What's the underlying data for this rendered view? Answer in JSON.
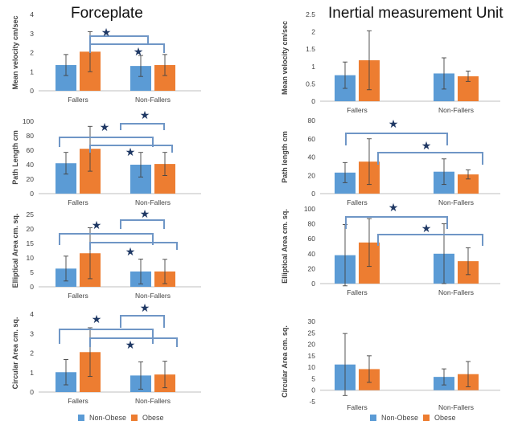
{
  "titles": {
    "left": "Forceplate",
    "right": "Inertial measurement Unit"
  },
  "legend": {
    "a": "Non-Obese",
    "b": "Obese"
  },
  "colors": {
    "a": "#5b9bd5",
    "b": "#ed7d31",
    "bracket": "#6f96c6",
    "star": "#1f3864",
    "axis": "#bfbfbf",
    "err": "#444444",
    "text": "#404040"
  },
  "chart_data": [
    {
      "type": "bar",
      "categories": [
        "Fallers",
        "Non-Fallers"
      ],
      "ylabel": "Mean velocity cm/sec",
      "ylim": [
        0,
        4
      ],
      "ticks": [
        "0",
        "1",
        "2",
        "3",
        "4"
      ],
      "series": [
        {
          "name": "Non-Obese",
          "values": [
            1.35,
            1.3
          ],
          "err": [
            0.55,
            0.55
          ]
        },
        {
          "name": "Obese",
          "values": [
            2.05,
            1.35
          ],
          "err": [
            1.05,
            0.55
          ]
        }
      ],
      "annotations": [
        "★",
        "★"
      ]
    },
    {
      "type": "bar",
      "categories": [
        "Fallers",
        "Non-Fallers"
      ],
      "ylabel": "Mean velocity cm/sec",
      "ylim": [
        0,
        2.5
      ],
      "ticks": [
        "0",
        "0.5",
        "1",
        "1.5",
        "2",
        "2.5"
      ],
      "series": [
        {
          "name": "Non-Obese",
          "values": [
            0.75,
            0.8
          ],
          "err": [
            0.38,
            0.45
          ]
        },
        {
          "name": "Obese",
          "values": [
            1.18,
            0.72
          ],
          "err": [
            0.85,
            0.15
          ]
        }
      ],
      "annotations": []
    },
    {
      "type": "bar",
      "categories": [
        "Fallers",
        "Non-Fallers"
      ],
      "ylabel": "Path Length cm",
      "ylim": [
        0,
        100
      ],
      "ticks": [
        "0",
        "20",
        "40",
        "60",
        "80",
        "100"
      ],
      "series": [
        {
          "name": "Non-Obese",
          "values": [
            42,
            40
          ],
          "err": [
            15,
            17
          ]
        },
        {
          "name": "Obese",
          "values": [
            62,
            41
          ],
          "err": [
            31,
            16
          ]
        }
      ],
      "annotations": [
        "★",
        "★",
        "★"
      ]
    },
    {
      "type": "bar",
      "categories": [
        "Fallers",
        "Non-Fallers"
      ],
      "ylabel": "Path length cm",
      "ylim": [
        0,
        80
      ],
      "ticks": [
        "0",
        "20",
        "40",
        "60",
        "80"
      ],
      "series": [
        {
          "name": "Non-Obese",
          "values": [
            23,
            24
          ],
          "err": [
            11,
            14
          ]
        },
        {
          "name": "Obese",
          "values": [
            35,
            21
          ],
          "err": [
            25,
            5
          ]
        }
      ],
      "annotations": [
        "★",
        "★"
      ]
    },
    {
      "type": "bar",
      "categories": [
        "Fallers",
        "Non-Fallers"
      ],
      "ylabel": "Elliptical Area cm. sq.",
      "ylim": [
        0,
        25
      ],
      "ticks": [
        "0",
        "5",
        "10",
        "15",
        "20",
        "25"
      ],
      "series": [
        {
          "name": "Non-Obese",
          "values": [
            6.3,
            5.3
          ],
          "err": [
            4.3,
            4.3
          ]
        },
        {
          "name": "Obese",
          "values": [
            11.6,
            5.3
          ],
          "err": [
            8.8,
            4.2
          ]
        }
      ],
      "annotations": [
        "★",
        "★",
        "★"
      ]
    },
    {
      "type": "bar",
      "categories": [
        "Fallers",
        "Non-Fallers"
      ],
      "ylabel": "Elliptical Area cm. sq.",
      "ylim": [
        0,
        100
      ],
      "ticks": [
        "0",
        "20",
        "40",
        "60",
        "80",
        "100"
      ],
      "series": [
        {
          "name": "Non-Obese",
          "values": [
            38,
            40
          ],
          "err": [
            41,
            40
          ]
        },
        {
          "name": "Obese",
          "values": [
            55,
            30
          ],
          "err": [
            32,
            18
          ]
        }
      ],
      "annotations": [
        "★",
        "★"
      ]
    },
    {
      "type": "bar",
      "categories": [
        "Fallers",
        "Non-Fallers"
      ],
      "ylabel": "Circular Area cm. sq.",
      "ylim": [
        0,
        4
      ],
      "ticks": [
        "0",
        "1",
        "2",
        "3",
        "4"
      ],
      "series": [
        {
          "name": "Non-Obese",
          "values": [
            1.02,
            0.85
          ],
          "err": [
            0.65,
            0.7
          ]
        },
        {
          "name": "Obese",
          "values": [
            2.05,
            0.9
          ],
          "err": [
            1.25,
            0.68
          ]
        }
      ],
      "annotations": [
        "★",
        "★",
        "★"
      ]
    },
    {
      "type": "bar",
      "categories": [
        "Fallers",
        "Non-Fallers"
      ],
      "ylabel": "Circular Area cm. sq.",
      "ylim": [
        -5,
        30
      ],
      "ticks": [
        "-5",
        "0",
        "5",
        "10",
        "15",
        "20",
        "25",
        "30"
      ],
      "series": [
        {
          "name": "Non-Obese",
          "values": [
            11.2,
            5.8
          ],
          "err": [
            13.5,
            3.5
          ]
        },
        {
          "name": "Obese",
          "values": [
            9.2,
            7.0
          ],
          "err": [
            5.8,
            5.5
          ]
        }
      ],
      "annotations": []
    }
  ]
}
